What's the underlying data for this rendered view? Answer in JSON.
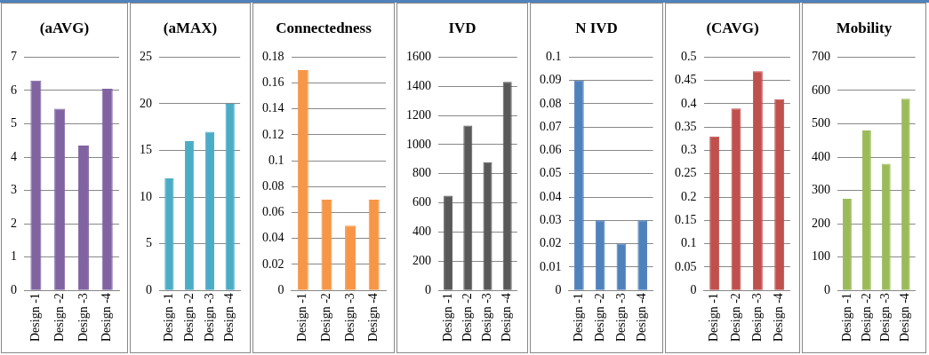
{
  "chart_data": [
    {
      "type": "bar",
      "title": "(aAVG)",
      "categories": [
        "Design -1",
        "Design -2",
        "Design -3",
        "Design -4"
      ],
      "values": [
        6.3,
        5.45,
        4.35,
        6.05
      ],
      "color": "#8064a2",
      "ylim": [
        0,
        7
      ],
      "yticks": [
        0,
        1,
        2,
        3,
        4,
        5,
        6,
        7
      ],
      "grid": "y"
    },
    {
      "type": "bar",
      "title": "(aMAX)",
      "categories": [
        "Design -1",
        "Design -2",
        "Design -3",
        "Design -4"
      ],
      "values": [
        12,
        16,
        17,
        20
      ],
      "color": "#4bacc6",
      "ylim": [
        0,
        25
      ],
      "yticks": [
        0,
        5,
        10,
        15,
        20,
        25
      ],
      "grid": "y"
    },
    {
      "type": "bar",
      "title": "Connectedness",
      "categories": [
        "Design -1",
        "Design -2",
        "Design -3",
        "Design -4"
      ],
      "values": [
        0.17,
        0.07,
        0.05,
        0.07
      ],
      "color": "#f79646",
      "ylim": [
        0,
        0.18
      ],
      "yticks": [
        0,
        0.02,
        0.04,
        0.06,
        0.08,
        0.1,
        0.12,
        0.14,
        0.16,
        0.18
      ],
      "grid": "y"
    },
    {
      "type": "bar",
      "title": "IVD",
      "categories": [
        "Design -1",
        "Design -2",
        "Design -3",
        "Design -4"
      ],
      "values": [
        650,
        1130,
        880,
        1430
      ],
      "color": "#595959",
      "ylim": [
        0,
        1600
      ],
      "yticks": [
        0,
        200,
        400,
        600,
        800,
        1000,
        1200,
        1400,
        1600
      ],
      "grid": "y"
    },
    {
      "type": "bar",
      "title": "N IVD",
      "categories": [
        "Design -1",
        "Design -2",
        "Design -3",
        "Design -4"
      ],
      "values": [
        0.09,
        0.03,
        0.02,
        0.03
      ],
      "color": "#4f81bd",
      "ylim": [
        0,
        0.1
      ],
      "yticks": [
        0,
        0.01,
        0.02,
        0.03,
        0.04,
        0.05,
        0.06,
        0.07,
        0.08,
        0.09,
        0.1
      ],
      "grid": "y"
    },
    {
      "type": "bar",
      "title": "(CAVG)",
      "categories": [
        "Design -1",
        "Design -2",
        "Design -3",
        "Design -4"
      ],
      "values": [
        0.33,
        0.39,
        0.47,
        0.41
      ],
      "color": "#c0504d",
      "ylim": [
        0,
        0.5
      ],
      "yticks": [
        0,
        0.05,
        0.1,
        0.15,
        0.2,
        0.25,
        0.3,
        0.35,
        0.4,
        0.45,
        0.5
      ],
      "grid": "y"
    },
    {
      "type": "bar",
      "title": "Mobility",
      "categories": [
        "Design -1",
        "Design -2",
        "Design -3",
        "Design -4"
      ],
      "values": [
        275,
        480,
        380,
        575
      ],
      "color": "#9bbb59",
      "ylim": [
        0,
        700
      ],
      "yticks": [
        0,
        100,
        200,
        300,
        400,
        500,
        600,
        700
      ],
      "grid": "y"
    }
  ]
}
